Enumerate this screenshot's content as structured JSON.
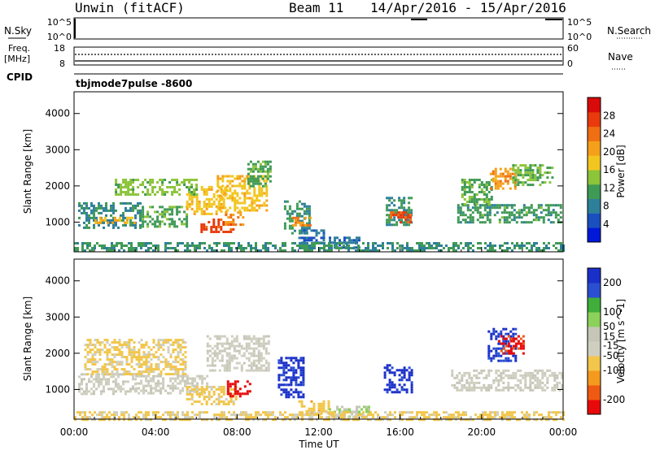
{
  "header": {
    "station": "Unwin (fitACF)",
    "beam": "Beam 11",
    "dates": "14/Apr/2016 - 15/Apr/2016"
  },
  "info_panels": {
    "nsky_label": "N.Sky",
    "nsky_ticks": [
      "10^5",
      "10^0"
    ],
    "nsearch_label": "N.Search",
    "nsearch_ticks": [
      "10^5",
      "10^0"
    ],
    "freq_label": "Freq.",
    "freq_unit": "[MHz]",
    "freq_ticks": [
      "18",
      "8"
    ],
    "nave_label": "Nave",
    "nave_ticks": [
      "60",
      "0"
    ],
    "cpid_label": "CPID",
    "cpid_value": "tbjmode7pulse -8600"
  },
  "chart_data": [
    {
      "type": "heatmap",
      "name": "power-panel",
      "xlabel": "",
      "ylabel": "Slant Range [km]",
      "x_ticks": [
        "00:00",
        "04:00",
        "08:00",
        "12:00",
        "16:00",
        "20:00",
        "00:00"
      ],
      "x_range_hours": [
        0,
        24
      ],
      "ylim": [
        180,
        4600
      ],
      "y_ticks": [
        1000,
        2000,
        3000,
        4000
      ],
      "colorbar": {
        "label": "Power [dB]",
        "ticks": [
          4,
          8,
          12,
          16,
          20,
          24,
          28
        ],
        "range": [
          0,
          32
        ],
        "colors": [
          "#0018d8",
          "#1a4fbf",
          "#2e7f9a",
          "#3f9a55",
          "#8cc43a",
          "#f2c61f",
          "#f5a01a",
          "#ef6f12",
          "#e83a0c",
          "#d80a0a"
        ]
      },
      "regions": [
        {
          "x0": 0.2,
          "x1": 3.2,
          "y0": 850,
          "y1": 1550,
          "value": 9
        },
        {
          "x0": 1.0,
          "x1": 3.0,
          "y0": 950,
          "y1": 1150,
          "value": 19
        },
        {
          "x0": 3.2,
          "x1": 5.5,
          "y0": 900,
          "y1": 1450,
          "value": 12
        },
        {
          "x0": 5.5,
          "x1": 7.5,
          "y0": 1200,
          "y1": 2000,
          "value": 18
        },
        {
          "x0": 2.0,
          "x1": 6.0,
          "y0": 1750,
          "y1": 2200,
          "value": 14
        },
        {
          "x0": 6.2,
          "x1": 7.8,
          "y0": 700,
          "y1": 1100,
          "value": 27
        },
        {
          "x0": 7.4,
          "x1": 8.3,
          "y0": 950,
          "y1": 1300,
          "value": 22
        },
        {
          "x0": 7.0,
          "x1": 9.5,
          "y0": 1300,
          "y1": 2300,
          "value": 18
        },
        {
          "x0": 8.5,
          "x1": 9.6,
          "y0": 2000,
          "y1": 2700,
          "value": 12
        },
        {
          "x0": 10.3,
          "x1": 11.5,
          "y0": 700,
          "y1": 1600,
          "value": 10
        },
        {
          "x0": 10.7,
          "x1": 11.6,
          "y0": 900,
          "y1": 1150,
          "value": 23
        },
        {
          "x0": 11.0,
          "x1": 12.2,
          "y0": 400,
          "y1": 800,
          "value": 6
        },
        {
          "x0": 12.5,
          "x1": 14.0,
          "y0": 300,
          "y1": 600,
          "value": 7
        },
        {
          "x0": 15.3,
          "x1": 16.6,
          "y0": 950,
          "y1": 1700,
          "value": 10
        },
        {
          "x0": 15.5,
          "x1": 16.5,
          "y0": 1000,
          "y1": 1300,
          "value": 26
        },
        {
          "x0": 18.8,
          "x1": 23.9,
          "y0": 1000,
          "y1": 1500,
          "value": 11
        },
        {
          "x0": 19.0,
          "x1": 20.5,
          "y0": 1500,
          "y1": 2200,
          "value": 12
        },
        {
          "x0": 20.4,
          "x1": 21.6,
          "y0": 1900,
          "y1": 2500,
          "value": 21
        },
        {
          "x0": 21.5,
          "x1": 23.5,
          "y0": 2000,
          "y1": 2600,
          "value": 13
        },
        {
          "x0": 0,
          "x1": 24,
          "y0": 190,
          "y1": 450,
          "value": 10
        }
      ]
    },
    {
      "type": "heatmap",
      "name": "velocity-panel",
      "xlabel": "Time UT",
      "ylabel": "Slant Range [km]",
      "x_ticks": [
        "00:00",
        "04:00",
        "08:00",
        "12:00",
        "16:00",
        "20:00",
        "00:00"
      ],
      "x_range_hours": [
        0,
        24
      ],
      "ylim": [
        180,
        4600
      ],
      "y_ticks": [
        1000,
        2000,
        3000,
        4000
      ],
      "colorbar": {
        "label": "Velocity [m s^-1]",
        "ticks": [
          200,
          100,
          50,
          15,
          -15,
          -50,
          -100,
          -200
        ],
        "range": [
          -250,
          250
        ],
        "colors": [
          "#e80a0a",
          "#ef5a12",
          "#f59a1f",
          "#f2c64a",
          "#cfcfc0",
          "#c6c6b8",
          "#8cd15a",
          "#3fae3a",
          "#2a4fd0",
          "#1a2fc8"
        ]
      },
      "regions": [
        {
          "x0": 0.2,
          "x1": 3.0,
          "y0": 900,
          "y1": 1450,
          "value": -5
        },
        {
          "x0": 0.5,
          "x1": 5.5,
          "y0": 1450,
          "y1": 2400,
          "value": -60
        },
        {
          "x0": 3.0,
          "x1": 6.5,
          "y0": 900,
          "y1": 1400,
          "value": -5
        },
        {
          "x0": 5.5,
          "x1": 8.0,
          "y0": 600,
          "y1": 1100,
          "value": -70
        },
        {
          "x0": 7.5,
          "x1": 8.6,
          "y0": 800,
          "y1": 1250,
          "value": -230
        },
        {
          "x0": 6.5,
          "x1": 9.5,
          "y0": 1500,
          "y1": 2500,
          "value": -8
        },
        {
          "x0": 10.0,
          "x1": 11.3,
          "y0": 800,
          "y1": 1900,
          "value": 220
        },
        {
          "x0": 11.0,
          "x1": 12.5,
          "y0": 300,
          "y1": 700,
          "value": -80
        },
        {
          "x0": 12.5,
          "x1": 14.5,
          "y0": 250,
          "y1": 550,
          "value": 40
        },
        {
          "x0": 15.2,
          "x1": 16.6,
          "y0": 950,
          "y1": 1700,
          "value": 220
        },
        {
          "x0": 18.5,
          "x1": 23.9,
          "y0": 950,
          "y1": 1550,
          "value": -5
        },
        {
          "x0": 20.3,
          "x1": 21.7,
          "y0": 1800,
          "y1": 2700,
          "value": 200
        },
        {
          "x0": 20.8,
          "x1": 22.0,
          "y0": 2000,
          "y1": 2500,
          "value": -220
        },
        {
          "x0": 0,
          "x1": 24,
          "y0": 190,
          "y1": 400,
          "value": -60
        }
      ]
    }
  ],
  "colors": {
    "axis": "#000000",
    "text": "#000000",
    "background": "#ffffff"
  }
}
